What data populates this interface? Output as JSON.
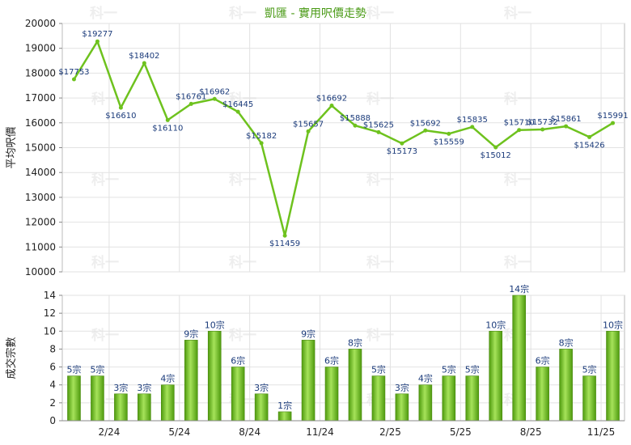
{
  "chart_data": [
    {
      "type": "line",
      "title": "凱匯 - 實用呎價走勢",
      "ylabel": "平均呎價",
      "ylim": [
        10000,
        20000
      ],
      "yticks": [
        "10000",
        "11000",
        "12000",
        "13000",
        "14000",
        "15000",
        "16000",
        "17000",
        "18000",
        "19000",
        "20000"
      ],
      "grid": true,
      "series": [
        {
          "values": [
            17753,
            19277,
            16610,
            18402,
            16110,
            16761,
            16962,
            16445,
            15182,
            11459,
            15657,
            16692,
            15888,
            15625,
            15173,
            15692,
            15559,
            15835,
            15012,
            15710,
            15732,
            15861,
            15426,
            15991
          ],
          "labels": [
            "$17753",
            "$19277",
            "$16610",
            "$18402",
            "$16110",
            "$16761",
            "$16962",
            "$16445",
            "$15182",
            "$11459",
            "$15657",
            "$16692",
            "$15888",
            "$15625",
            "$15173",
            "$15692",
            "$15559",
            "$15835",
            "$15012",
            "$15710",
            "$15732",
            "$15861",
            "$15426",
            "$15991"
          ],
          "color": "#6ec21e"
        }
      ]
    },
    {
      "type": "bar",
      "ylabel": "成交宗數",
      "ylim": [
        0,
        14
      ],
      "yticks": [
        "0",
        "2",
        "4",
        "6",
        "8",
        "10",
        "12",
        "14"
      ],
      "categories": [
        "",
        "2/24",
        "",
        "",
        "5/24",
        "",
        "",
        "8/24",
        "",
        "",
        "11/24",
        "",
        "",
        "2/25",
        "",
        "",
        "5/25",
        "",
        "",
        "8/25",
        "",
        "",
        "11/25",
        ""
      ],
      "xticks": [
        {
          "label": "2/24",
          "pos": 2
        },
        {
          "label": "5/24",
          "pos": 5
        },
        {
          "label": "8/24",
          "pos": 8
        },
        {
          "label": "11/24",
          "pos": 11
        },
        {
          "label": "2/25",
          "pos": 14
        },
        {
          "label": "5/25",
          "pos": 17
        },
        {
          "label": "8/25",
          "pos": 20
        },
        {
          "label": "11/25",
          "pos": 23
        }
      ],
      "values": [
        5,
        5,
        3,
        3,
        4,
        9,
        10,
        6,
        3,
        1,
        9,
        6,
        8,
        5,
        3,
        4,
        5,
        5,
        10,
        14,
        6,
        8,
        5,
        10
      ],
      "labels": [
        "5宗",
        "5宗",
        "3宗",
        "3宗",
        "4宗",
        "9宗",
        "10宗",
        "6宗",
        "3宗",
        "1宗",
        "9宗",
        "6宗",
        "8宗",
        "5宗",
        "3宗",
        "4宗",
        "5宗",
        "5宗",
        "10宗",
        "14宗",
        "6宗",
        "8宗",
        "5宗",
        "10宗"
      ],
      "color": "#6ec21e"
    }
  ],
  "watermark": "科一"
}
